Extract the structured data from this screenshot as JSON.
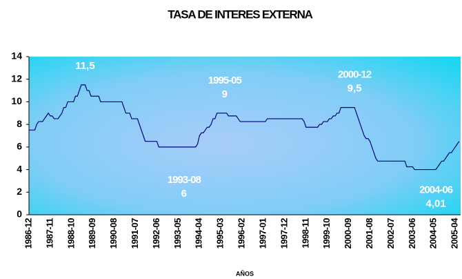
{
  "chart_data": {
    "type": "line",
    "title": "TASA DE INTERES EXTERNA",
    "x_label": "AÑOS",
    "categories": [
      "1986-12",
      null,
      null,
      null,
      null,
      null,
      null,
      null,
      null,
      null,
      null,
      "1987-11",
      null,
      null,
      null,
      null,
      null,
      null,
      null,
      null,
      null,
      null,
      "1988-10",
      null,
      null,
      null,
      null,
      null,
      null,
      null,
      null,
      null,
      null,
      "1989-09",
      null,
      null,
      null,
      null,
      null,
      null,
      null,
      null,
      null,
      null,
      "1990-08",
      null,
      null,
      null,
      null,
      null,
      null,
      null,
      null,
      null,
      null,
      "1991-07",
      null,
      null,
      null,
      null,
      null,
      null,
      null,
      null,
      null,
      null,
      "1992-06",
      null,
      null,
      null,
      null,
      null,
      null,
      null,
      null,
      null,
      null,
      "1993-05",
      null,
      null,
      null,
      null,
      null,
      null,
      null,
      null,
      null,
      null,
      "1994-04",
      null,
      null,
      null,
      null,
      null,
      null,
      null,
      null,
      null,
      null,
      "1995-03",
      null,
      null,
      null,
      null,
      null,
      null,
      null,
      null,
      null,
      null,
      "1996-02",
      null,
      null,
      null,
      null,
      null,
      null,
      null,
      null,
      null,
      null,
      "1997-01",
      null,
      null,
      null,
      null,
      null,
      null,
      null,
      null,
      null,
      null,
      "1997-12",
      null,
      null,
      null,
      null,
      null,
      null,
      null,
      null,
      null,
      null,
      "1998-11",
      null,
      null,
      null,
      null,
      null,
      null,
      null,
      null,
      null,
      null,
      "1999-10",
      null,
      null,
      null,
      null,
      null,
      null,
      null,
      null,
      null,
      null,
      "2000-09",
      null,
      null,
      null,
      null,
      null,
      null,
      null,
      null,
      null,
      null,
      "2001-08",
      null,
      null,
      null,
      null,
      null,
      null,
      null,
      null,
      null,
      null,
      "2002-07",
      null,
      null,
      null,
      null,
      null,
      null,
      null,
      null,
      null,
      null,
      "2003-06",
      null,
      null,
      null,
      null,
      null,
      null,
      null,
      null,
      null,
      null,
      "2004-05",
      null,
      null,
      null,
      null,
      null,
      null,
      null,
      null,
      null,
      null,
      "2005-04",
      null,
      null
    ],
    "values": [
      7.5,
      7.5,
      7.5,
      7.5,
      8,
      8.25,
      8.25,
      8.25,
      8.5,
      8.75,
      9,
      8.75,
      8.75,
      8.5,
      8.5,
      8.5,
      8.75,
      9,
      9.5,
      9.5,
      10,
      10,
      10,
      10,
      10.5,
      10.5,
      11,
      11.5,
      11.5,
      11.5,
      11,
      11,
      10.5,
      10.5,
      10.5,
      10.5,
      10.5,
      10,
      10,
      10,
      10,
      10,
      10,
      10,
      10,
      10,
      10,
      10,
      10,
      9.5,
      9,
      9,
      9,
      8.5,
      8.5,
      8.5,
      8.5,
      8,
      7.5,
      7,
      6.5,
      6.5,
      6.5,
      6.5,
      6.5,
      6.5,
      6.5,
      6,
      6,
      6,
      6,
      6,
      6,
      6,
      6,
      6,
      6,
      6,
      6,
      6,
      6,
      6,
      6,
      6,
      6,
      6,
      6,
      6.25,
      7,
      7.25,
      7.25,
      7.5,
      7.75,
      7.75,
      8,
      8.5,
      8.5,
      9,
      9,
      9,
      9,
      9,
      9,
      8.75,
      8.75,
      8.75,
      8.75,
      8.75,
      8.5,
      8.25,
      8.25,
      8.25,
      8.25,
      8.25,
      8.25,
      8.25,
      8.25,
      8.25,
      8.25,
      8.25,
      8.25,
      8.25,
      8.25,
      8.5,
      8.5,
      8.5,
      8.5,
      8.5,
      8.5,
      8.5,
      8.5,
      8.5,
      8.5,
      8.5,
      8.5,
      8.5,
      8.5,
      8.5,
      8.5,
      8.5,
      8.5,
      8.5,
      8.25,
      7.75,
      7.75,
      7.75,
      7.75,
      7.75,
      7.75,
      7.75,
      8,
      8,
      8.25,
      8.25,
      8.25,
      8.5,
      8.5,
      8.75,
      8.75,
      9,
      9,
      9.5,
      9.5,
      9.5,
      9.5,
      9.5,
      9.5,
      9.5,
      9.5,
      9,
      8.5,
      8,
      7.5,
      7,
      6.75,
      6.75,
      6.5,
      6,
      5.5,
      5,
      4.75,
      4.75,
      4.75,
      4.75,
      4.75,
      4.75,
      4.75,
      4.75,
      4.75,
      4.75,
      4.75,
      4.75,
      4.75,
      4.75,
      4.75,
      4.25,
      4.25,
      4.25,
      4.25,
      4,
      4,
      4,
      4,
      4,
      4,
      4,
      4,
      4,
      4,
      4,
      4.01,
      4.25,
      4.5,
      4.75,
      4.75,
      5,
      5.25,
      5.5,
      5.5,
      5.75,
      6,
      6.25,
      6.5
    ],
    "color": "#000080",
    "ylim": [
      0,
      14
    ],
    "yticks": [
      0,
      2,
      4,
      6,
      8,
      10,
      12,
      14
    ],
    "annotations": [
      {
        "date": "1989-05",
        "label": "11,5"
      },
      {
        "date": "1993-08",
        "label": "6"
      },
      {
        "date": "1995-05",
        "label": "9"
      },
      {
        "date": "2000-12",
        "label": "9,5"
      },
      {
        "date": "2004-06",
        "label": "4,01"
      }
    ]
  }
}
